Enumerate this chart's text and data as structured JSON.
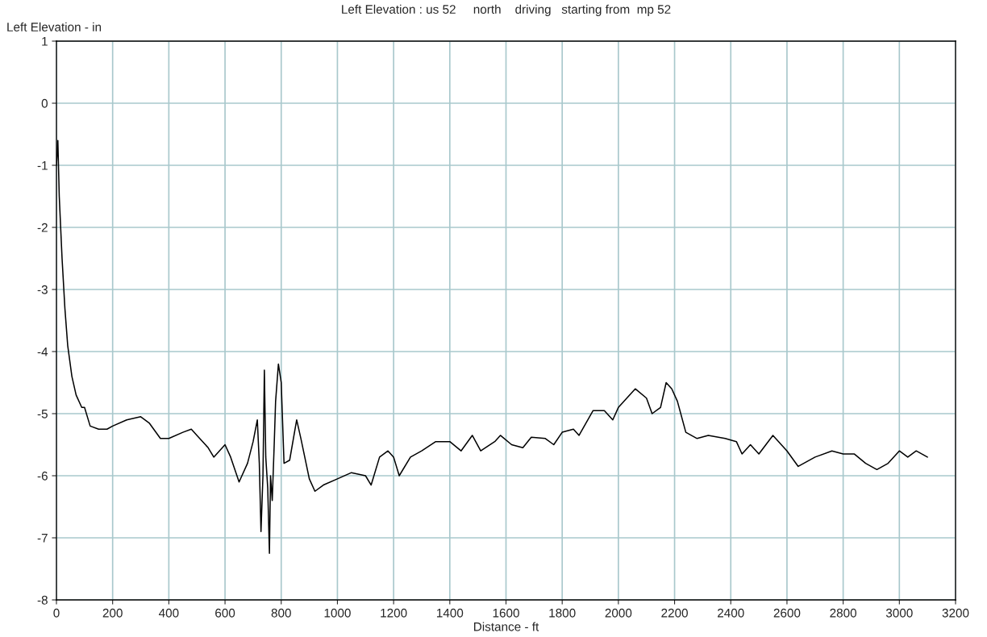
{
  "chart_data": {
    "type": "line",
    "title": "Left Elevation : us 52     north    driving   starting from  mp 52",
    "xlabel": "Distance - ft",
    "ylabel": "Left Elevation - in",
    "xlim": [
      0,
      3200
    ],
    "xticks": [
      0,
      200,
      400,
      600,
      800,
      1000,
      1200,
      1400,
      1600,
      1800,
      2000,
      2200,
      2400,
      2600,
      2800,
      3000,
      3200
    ],
    "ylim": [
      -8,
      1
    ],
    "yticks": [
      -8,
      -7,
      -6,
      -5,
      -4,
      -3,
      -2,
      -1,
      0,
      1
    ],
    "grid": true,
    "marker": "none",
    "line_style": "solid",
    "series": [
      {
        "color": "#000000",
        "x": [
          0,
          5,
          10,
          20,
          30,
          40,
          55,
          70,
          90,
          100,
          120,
          150,
          180,
          200,
          250,
          300,
          330,
          370,
          400,
          450,
          480,
          500,
          540,
          560,
          600,
          620,
          650,
          680,
          700,
          715,
          722,
          728,
          735,
          740,
          745,
          752,
          758,
          762,
          768,
          775,
          780,
          790,
          800,
          810,
          830,
          855,
          870,
          900,
          920,
          950,
          1000,
          1050,
          1100,
          1120,
          1150,
          1180,
          1200,
          1220,
          1260,
          1300,
          1350,
          1400,
          1440,
          1480,
          1510,
          1560,
          1580,
          1620,
          1660,
          1690,
          1740,
          1770,
          1800,
          1840,
          1860,
          1910,
          1950,
          1980,
          2000,
          2060,
          2100,
          2120,
          2150,
          2170,
          2190,
          2210,
          2240,
          2280,
          2320,
          2380,
          2420,
          2440,
          2470,
          2500,
          2550,
          2600,
          2640,
          2700,
          2760,
          2800,
          2840,
          2880,
          2920,
          2960,
          3000,
          3030,
          3060,
          3100
        ],
        "values": [
          -1.0,
          -0.6,
          -1.5,
          -2.5,
          -3.3,
          -3.9,
          -4.4,
          -4.7,
          -4.9,
          -4.9,
          -5.2,
          -5.25,
          -5.25,
          -5.2,
          -5.1,
          -5.05,
          -5.15,
          -5.4,
          -5.4,
          -5.3,
          -5.25,
          -5.35,
          -5.55,
          -5.7,
          -5.5,
          -5.7,
          -6.1,
          -5.8,
          -5.45,
          -5.1,
          -5.8,
          -6.9,
          -6.0,
          -4.3,
          -5.7,
          -6.2,
          -7.25,
          -6.0,
          -6.4,
          -5.5,
          -4.8,
          -4.2,
          -4.5,
          -5.8,
          -5.75,
          -5.1,
          -5.4,
          -6.05,
          -6.25,
          -6.15,
          -6.05,
          -5.95,
          -6.0,
          -6.15,
          -5.7,
          -5.6,
          -5.7,
          -6.0,
          -5.7,
          -5.6,
          -5.45,
          -5.45,
          -5.6,
          -5.35,
          -5.6,
          -5.45,
          -5.35,
          -5.5,
          -5.55,
          -5.38,
          -5.4,
          -5.5,
          -5.3,
          -5.25,
          -5.35,
          -4.95,
          -4.95,
          -5.1,
          -4.9,
          -4.6,
          -4.75,
          -5.0,
          -4.9,
          -4.5,
          -4.6,
          -4.8,
          -5.3,
          -5.4,
          -5.35,
          -5.4,
          -5.45,
          -5.65,
          -5.5,
          -5.65,
          -5.35,
          -5.6,
          -5.85,
          -5.7,
          -5.6,
          -5.65,
          -5.65,
          -5.8,
          -5.9,
          -5.8,
          -5.6,
          -5.7,
          -5.6,
          -5.7
        ]
      }
    ]
  }
}
